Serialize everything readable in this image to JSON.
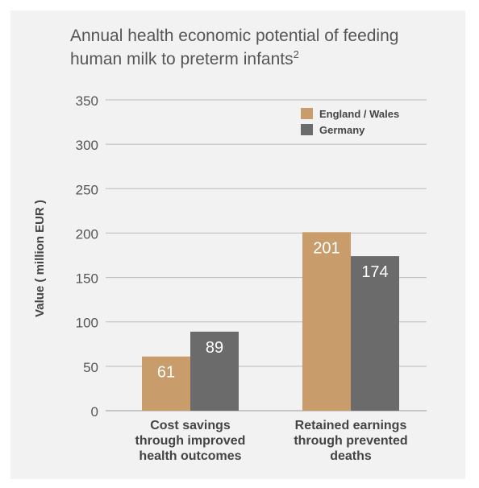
{
  "chart_data": {
    "type": "bar",
    "title": "Annual health economic potential of feeding human milk to preterm infants",
    "title_superscript": "2",
    "xlabel": "",
    "ylabel": "Value ( million EUR )",
    "ylim": [
      0,
      350
    ],
    "yticks": [
      0,
      50,
      100,
      150,
      200,
      250,
      300,
      350
    ],
    "grid": true,
    "legend_position": "top-right",
    "categories": [
      [
        "Cost savings",
        "through improved",
        "health outcomes"
      ],
      [
        "Retained earnings",
        "through prevented",
        "deaths"
      ]
    ],
    "series": [
      {
        "name": "England / Wales",
        "values": [
          61,
          201
        ],
        "color": "#c89d6b"
      },
      {
        "name": "Germany",
        "values": [
          89,
          174
        ],
        "color": "#6b6b6b"
      }
    ],
    "data_label_color": "#ffffff",
    "grid_color": "#b9b9b9",
    "text_color": "#555555"
  }
}
